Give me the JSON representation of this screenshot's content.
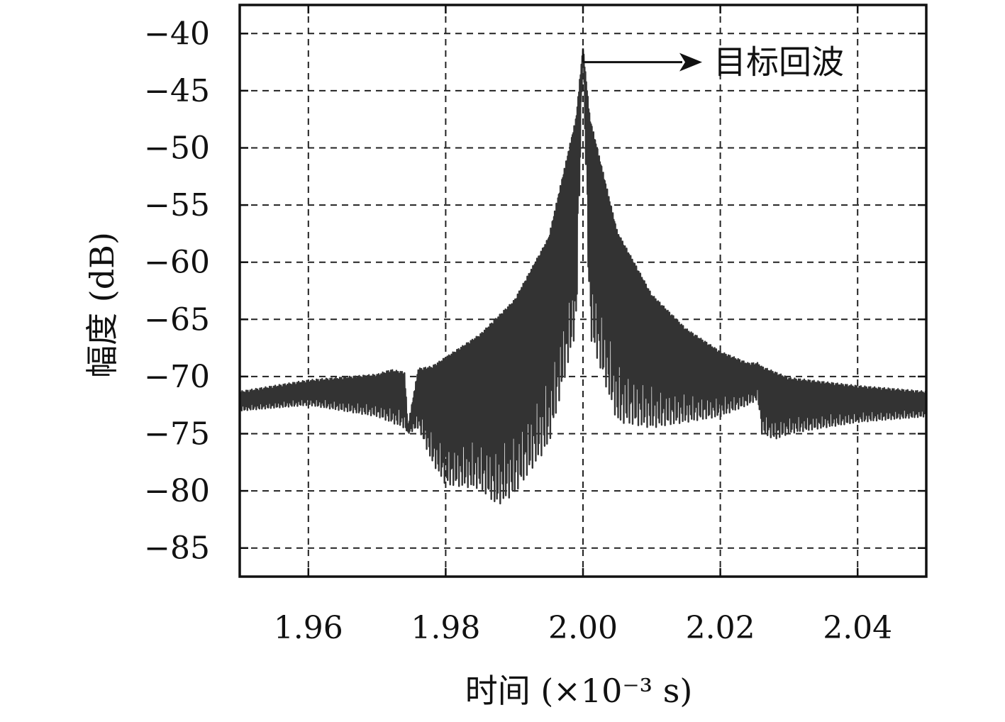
{
  "chart_data": {
    "type": "line",
    "title": "",
    "xlabel": "时间 (×10⁻³ s)",
    "ylabel": "幅度 (dB)",
    "xlim": [
      1.95,
      2.05
    ],
    "ylim": [
      -87.5,
      -37.5
    ],
    "grid": true,
    "xticks": [
      1.96,
      1.98,
      2.0,
      2.02,
      2.04
    ],
    "xtick_labels": [
      "1.96",
      "1.98",
      "2.00",
      "2.02",
      "2.04"
    ],
    "yticks": [
      -40,
      -45,
      -50,
      -55,
      -60,
      -65,
      -70,
      -75,
      -80,
      -85
    ],
    "ytick_labels": [
      "−40",
      "−45",
      "−50",
      "−55",
      "−60",
      "−65",
      "−70",
      "−75",
      "−80",
      "−85"
    ],
    "series": [
      {
        "color": "#333333",
        "x": [
          1.95,
          1.96,
          1.97,
          1.972,
          1.974,
          1.9745,
          1.976,
          1.978,
          1.98,
          1.985,
          1.9875,
          1.99,
          1.995,
          1.999,
          2.0,
          2.001,
          2.005,
          2.01,
          2.015,
          2.02,
          2.024,
          2.0255,
          2.026,
          2.028,
          2.03,
          2.04,
          2.05
        ],
        "y_upper": [
          -71.5,
          -70.5,
          -70.0,
          -69.6,
          -69.8,
          -74.5,
          -69.5,
          -69.3,
          -68.5,
          -66.5,
          -65.0,
          -63.5,
          -58.0,
          -47.5,
          -41.3,
          -47.5,
          -57.5,
          -63.0,
          -66.0,
          -68.0,
          -69.0,
          -69.0,
          -69.3,
          -69.8,
          -70.3,
          -71.0,
          -71.5
        ],
        "y_lower": [
          -73.0,
          -72.5,
          -73.5,
          -74.0,
          -74.5,
          -75.0,
          -74.5,
          -77.5,
          -79.5,
          -79.8,
          -81.3,
          -80.3,
          -76.0,
          -66.0,
          -41.3,
          -66.5,
          -74.0,
          -74.5,
          -74.0,
          -73.5,
          -72.5,
          -72.0,
          -75.0,
          -75.5,
          -75.0,
          -74.0,
          -73.5
        ]
      }
    ],
    "annotations": [
      {
        "text": "目标回波",
        "x": 2.0,
        "y": -42.5
      }
    ]
  }
}
